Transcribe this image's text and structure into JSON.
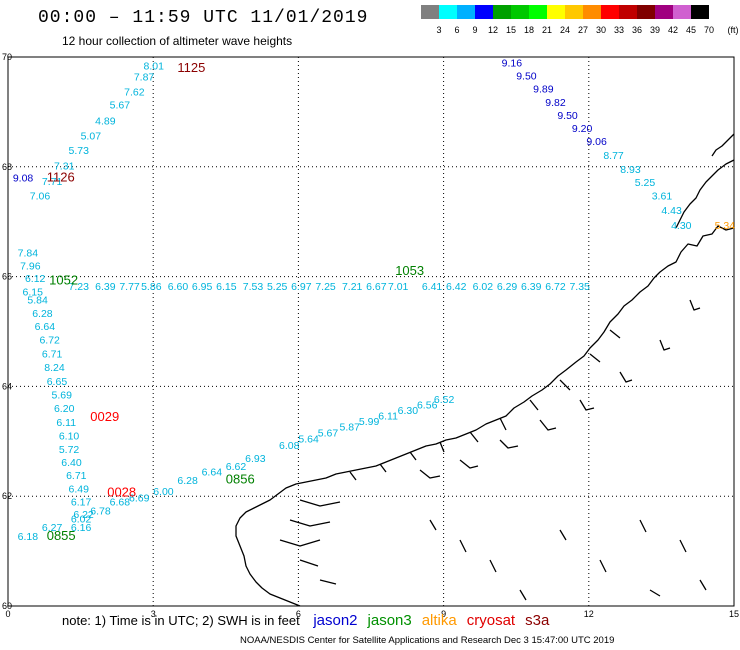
{
  "header": {
    "title": "00:00 – 11:59 UTC 11/01/2019",
    "subtitle": "12 hour collection of altimeter wave heights"
  },
  "colorbar": {
    "labels": [
      "3",
      "6",
      "9",
      "12",
      "15",
      "18",
      "21",
      "24",
      "27",
      "30",
      "33",
      "36",
      "39",
      "42",
      "45",
      "70",
      "(ft)"
    ],
    "colors": [
      "#808080",
      "#00ffff",
      "#00b0ff",
      "#0000ff",
      "#00a000",
      "#00c800",
      "#00ff00",
      "#ffff00",
      "#ffc800",
      "#ff8c00",
      "#ff0000",
      "#c00000",
      "#800000",
      "#a00080",
      "#d060d0",
      "#000000"
    ]
  },
  "map": {
    "y_ticks": [
      "70",
      "68",
      "66",
      "64",
      "62",
      "60"
    ],
    "x_ticks": [
      "0",
      "3",
      "6",
      "9",
      "12",
      "15"
    ],
    "time_labels": [
      {
        "text": "1125",
        "lon": 3.5,
        "lat": 69.73,
        "color": "#8b0000"
      },
      {
        "text": "1126",
        "lon": 0.8,
        "lat": 67.73,
        "color": "#8b0000"
      },
      {
        "text": "1052",
        "lon": 0.85,
        "lat": 65.86,
        "color": "#008000"
      },
      {
        "text": "1053",
        "lon": 8.0,
        "lat": 66.03,
        "color": "#008000"
      },
      {
        "text": "0029",
        "lon": 1.7,
        "lat": 63.37,
        "color": "#ff0000"
      },
      {
        "text": "0028",
        "lon": 2.05,
        "lat": 61.99,
        "color": "#ff0000"
      },
      {
        "text": "0856",
        "lon": 4.5,
        "lat": 62.23,
        "color": "#008000"
      },
      {
        "text": "0855",
        "lon": 0.8,
        "lat": 61.2,
        "color": "#008000"
      }
    ],
    "tracks": [
      {
        "name": "jason2-north",
        "color": "#0000c8",
        "points": [
          {
            "lon": 10.2,
            "lat": 69.83,
            "v": "9.16"
          },
          {
            "lon": 10.5,
            "lat": 69.59,
            "v": "9.50"
          },
          {
            "lon": 10.85,
            "lat": 69.35,
            "v": "9.89"
          },
          {
            "lon": 11.1,
            "lat": 69.11,
            "v": "9.82"
          },
          {
            "lon": 11.35,
            "lat": 68.87,
            "v": "9.50"
          },
          {
            "lon": 11.65,
            "lat": 68.63,
            "v": "9.20"
          },
          {
            "lon": 11.95,
            "lat": 68.4,
            "v": "9.06"
          },
          {
            "lon": 0.1,
            "lat": 67.73,
            "v": "9.08"
          }
        ]
      },
      {
        "name": "cyan-north-east",
        "color": "#00b4dc",
        "points": [
          {
            "lon": 12.3,
            "lat": 68.14,
            "v": "8.77"
          },
          {
            "lon": 12.65,
            "lat": 67.89,
            "v": "8.93"
          },
          {
            "lon": 12.95,
            "lat": 67.65,
            "v": "5.25"
          },
          {
            "lon": 13.3,
            "lat": 67.4,
            "v": "3.61"
          },
          {
            "lon": 13.5,
            "lat": 67.14,
            "v": "4.43"
          },
          {
            "lon": 13.7,
            "lat": 66.87,
            "v": "4.30"
          }
        ]
      },
      {
        "name": "cyan-north-west",
        "color": "#00b4dc",
        "points": [
          {
            "lon": 2.8,
            "lat": 69.77,
            "v": "8.01"
          },
          {
            "lon": 2.6,
            "lat": 69.57,
            "v": "7.87"
          },
          {
            "lon": 2.4,
            "lat": 69.3,
            "v": "7.62"
          },
          {
            "lon": 2.1,
            "lat": 69.06,
            "v": "5.67"
          },
          {
            "lon": 1.8,
            "lat": 68.77,
            "v": "4.89"
          },
          {
            "lon": 1.5,
            "lat": 68.5,
            "v": "5.07"
          },
          {
            "lon": 1.25,
            "lat": 68.23,
            "v": "5.73"
          },
          {
            "lon": 0.95,
            "lat": 67.95,
            "v": "7.31"
          },
          {
            "lon": 0.7,
            "lat": 67.67,
            "v": "7.71"
          },
          {
            "lon": 0.45,
            "lat": 67.4,
            "v": "7.06"
          }
        ]
      },
      {
        "name": "cyan-row",
        "color": "#00b4dc",
        "points": [
          {
            "lon": 0.2,
            "lat": 66.37,
            "v": "7.84"
          },
          {
            "lon": 0.25,
            "lat": 66.13,
            "v": "7.96"
          },
          {
            "lon": 0.35,
            "lat": 65.9,
            "v": "6.12"
          },
          {
            "lon": 0.3,
            "lat": 65.66,
            "v": "6.15"
          },
          {
            "lon": 0.4,
            "lat": 65.51,
            "v": "5.84"
          },
          {
            "lon": 1.25,
            "lat": 65.76,
            "v": "7.23"
          },
          {
            "lon": 1.8,
            "lat": 65.76,
            "v": "6.39"
          },
          {
            "lon": 2.3,
            "lat": 65.76,
            "v": "7.77"
          },
          {
            "lon": 2.75,
            "lat": 65.76,
            "v": "5.86"
          },
          {
            "lon": 3.3,
            "lat": 65.76,
            "v": "6.60"
          },
          {
            "lon": 3.8,
            "lat": 65.76,
            "v": "6.95"
          },
          {
            "lon": 4.3,
            "lat": 65.76,
            "v": "6.15"
          },
          {
            "lon": 4.85,
            "lat": 65.76,
            "v": "7.53"
          },
          {
            "lon": 5.35,
            "lat": 65.76,
            "v": "5.25"
          },
          {
            "lon": 5.85,
            "lat": 65.76,
            "v": "6.97"
          },
          {
            "lon": 6.35,
            "lat": 65.76,
            "v": "7.25"
          },
          {
            "lon": 6.9,
            "lat": 65.76,
            "v": "7.21"
          },
          {
            "lon": 7.4,
            "lat": 65.76,
            "v": "6.67"
          },
          {
            "lon": 7.85,
            "lat": 65.76,
            "v": "7.01"
          },
          {
            "lon": 8.55,
            "lat": 65.76,
            "v": "6.41"
          },
          {
            "lon": 9.05,
            "lat": 65.76,
            "v": "6.42"
          },
          {
            "lon": 9.6,
            "lat": 65.76,
            "v": "6.02"
          },
          {
            "lon": 10.1,
            "lat": 65.76,
            "v": "6.29"
          },
          {
            "lon": 10.6,
            "lat": 65.76,
            "v": "6.39"
          },
          {
            "lon": 11.1,
            "lat": 65.76,
            "v": "6.72"
          },
          {
            "lon": 11.6,
            "lat": 65.76,
            "v": "7.35"
          }
        ]
      },
      {
        "name": "cyan-south-west",
        "color": "#00b4dc",
        "points": [
          {
            "lon": 0.5,
            "lat": 65.26,
            "v": "6.28"
          },
          {
            "lon": 0.55,
            "lat": 65.03,
            "v": "6.64"
          },
          {
            "lon": 0.65,
            "lat": 64.78,
            "v": "6.72"
          },
          {
            "lon": 0.7,
            "lat": 64.53,
            "v": "6.71"
          },
          {
            "lon": 0.75,
            "lat": 64.28,
            "v": "8.24"
          },
          {
            "lon": 0.8,
            "lat": 64.03,
            "v": "6.65"
          },
          {
            "lon": 0.9,
            "lat": 63.78,
            "v": "5.69"
          },
          {
            "lon": 0.95,
            "lat": 63.53,
            "v": "6.20"
          },
          {
            "lon": 1.0,
            "lat": 63.28,
            "v": "6.11"
          },
          {
            "lon": 1.05,
            "lat": 63.03,
            "v": "6.10"
          },
          {
            "lon": 1.05,
            "lat": 62.79,
            "v": "5.72"
          },
          {
            "lon": 1.1,
            "lat": 62.55,
            "v": "6.40"
          },
          {
            "lon": 1.2,
            "lat": 62.31,
            "v": "6.71"
          },
          {
            "lon": 1.25,
            "lat": 62.07,
            "v": "6.49"
          },
          {
            "lon": 1.3,
            "lat": 61.83,
            "v": "6.17"
          },
          {
            "lon": 1.35,
            "lat": 61.6,
            "v": "6.22"
          },
          {
            "lon": 1.3,
            "lat": 61.37,
            "v": "6.16"
          },
          {
            "lon": 0.2,
            "lat": 61.2,
            "v": "6.18"
          }
        ]
      },
      {
        "name": "cyan-south-east",
        "color": "#00b4dc",
        "points": [
          {
            "lon": 0.7,
            "lat": 61.37,
            "v": "6.27"
          },
          {
            "lon": 1.3,
            "lat": 61.52,
            "v": "6.02"
          },
          {
            "lon": 1.7,
            "lat": 61.67,
            "v": "6.78"
          },
          {
            "lon": 2.1,
            "lat": 61.83,
            "v": "6.68"
          },
          {
            "lon": 2.5,
            "lat": 61.9,
            "v": "6.69"
          },
          {
            "lon": 3.0,
            "lat": 62.02,
            "v": "6.00"
          },
          {
            "lon": 3.5,
            "lat": 62.22,
            "v": "6.28"
          },
          {
            "lon": 4.0,
            "lat": 62.38,
            "v": "6.64"
          },
          {
            "lon": 4.5,
            "lat": 62.48,
            "v": "6.62"
          },
          {
            "lon": 4.9,
            "lat": 62.62,
            "v": "6.93"
          },
          {
            "lon": 5.6,
            "lat": 62.86,
            "v": "6.08"
          },
          {
            "lon": 6.0,
            "lat": 62.98,
            "v": "5.64"
          },
          {
            "lon": 6.4,
            "lat": 63.09,
            "v": "5.67"
          },
          {
            "lon": 6.85,
            "lat": 63.2,
            "v": "5.87"
          },
          {
            "lon": 7.25,
            "lat": 63.3,
            "v": "5.99"
          },
          {
            "lon": 7.65,
            "lat": 63.4,
            "v": "6.11"
          },
          {
            "lon": 8.05,
            "lat": 63.5,
            "v": "6.30"
          },
          {
            "lon": 8.45,
            "lat": 63.6,
            "v": "6.56"
          },
          {
            "lon": 8.8,
            "lat": 63.7,
            "v": "6.52"
          }
        ]
      },
      {
        "name": "altika",
        "color": "#ff9900",
        "points": [
          {
            "lon": 14.6,
            "lat": 66.87,
            "v": "5.34"
          }
        ]
      }
    ]
  },
  "footer": {
    "note": "note:  1) Time is in UTC;  2) SWH is in feet",
    "satellites": [
      {
        "label": "jason2",
        "color": "#0000d0"
      },
      {
        "label": "jason3",
        "color": "#009000"
      },
      {
        "label": "altika",
        "color": "#ff9900"
      },
      {
        "label": "cryosat",
        "color": "#e00000"
      },
      {
        "label": "s3a",
        "color": "#8b0000"
      }
    ],
    "credit": "NOAA/NESDIS Center for Satellite Applications and Research    Dec  3 15:47:00 UTC 2019"
  }
}
